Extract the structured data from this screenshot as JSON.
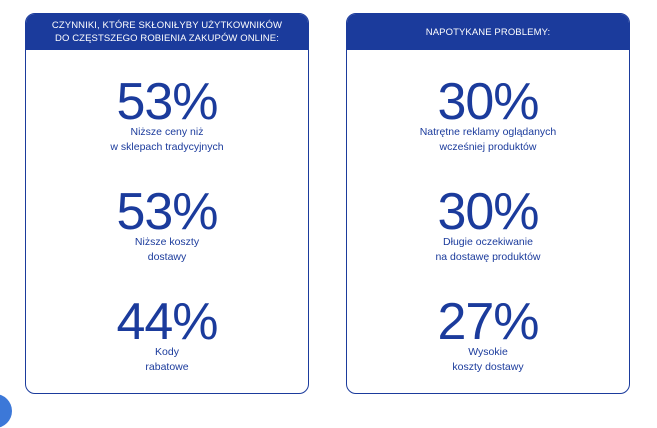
{
  "left_panel": {
    "header": "CZYNNIKI, KTÓRE SKŁONIŁYBY UŻYTKOWNIKÓW\nDO CZĘSTSZEGO ROBIENIA ZAKUPÓW ONLINE:",
    "stats": [
      {
        "value": "53%",
        "label": "Niższe ceny niż\nw sklepach tradycyjnych"
      },
      {
        "value": "53%",
        "label": "Niższe koszty\ndostawy"
      },
      {
        "value": "44%",
        "label": "Kody\nrabatowe"
      }
    ]
  },
  "right_panel": {
    "header": "NAPOTYKANE PROBLEMY:",
    "stats": [
      {
        "value": "30%",
        "label": "Natrętne reklamy oglądanych\nwcześniej produktów"
      },
      {
        "value": "30%",
        "label": "Długie oczekiwanie\nna dostawę produktów"
      },
      {
        "value": "27%",
        "label": "Wysokie\nkoszty dostawy"
      }
    ]
  },
  "colors": {
    "accent": "#1b3b9c",
    "corner": "#3c78d8"
  }
}
